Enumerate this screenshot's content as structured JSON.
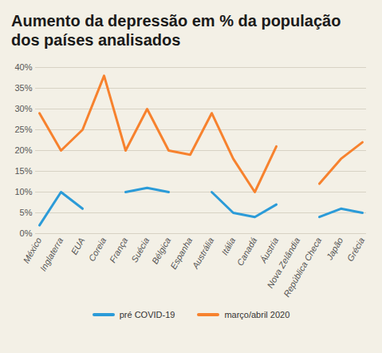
{
  "chart_data": {
    "type": "line",
    "title": "Aumento da depressão em % da população dos países analisados",
    "categories": [
      "México",
      "Inglaterra",
      "EUA",
      "Coreia",
      "França",
      "Suécia",
      "Bélgica",
      "Espanha",
      "Austrália",
      "Itália",
      "Canadá",
      "Áustria",
      "Nova Zelândia",
      "República Checa",
      "Japão",
      "Grécia"
    ],
    "series": [
      {
        "name": "pré COVID-19",
        "color": "#2b9bd8",
        "values": [
          2,
          10,
          6,
          null,
          10,
          11,
          10,
          null,
          10,
          5,
          4,
          7,
          null,
          4,
          6,
          5
        ]
      },
      {
        "name": "março/abril 2020",
        "color": "#f7822e",
        "values": [
          29,
          20,
          25,
          38,
          20,
          30,
          20,
          19,
          29,
          18,
          10,
          21,
          null,
          12,
          18,
          22
        ]
      }
    ],
    "ylim": [
      0,
      40
    ],
    "yticks": [
      {
        "value": 0,
        "label": "0%"
      },
      {
        "value": 5,
        "label": "5%"
      },
      {
        "value": 10,
        "label": "10%"
      },
      {
        "value": 15,
        "label": "15%"
      },
      {
        "value": 20,
        "label": "20%"
      },
      {
        "value": 25,
        "label": "25%"
      },
      {
        "value": 30,
        "label": "30%"
      },
      {
        "value": 35,
        "label": "35%"
      },
      {
        "value": 40,
        "label": "40%"
      }
    ],
    "grid": true,
    "legend": "bottom"
  }
}
